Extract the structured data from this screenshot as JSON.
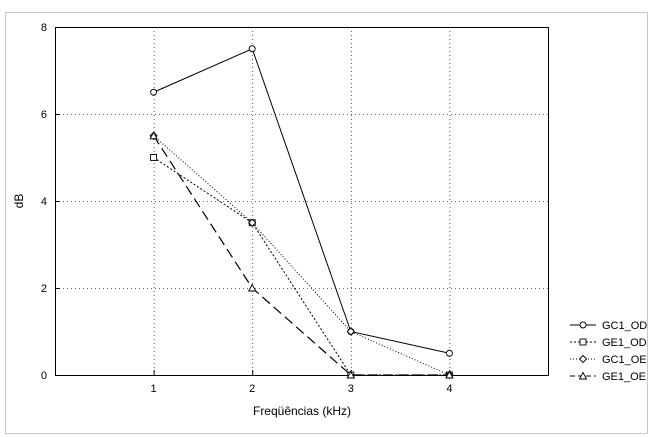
{
  "chart_data": {
    "type": "line",
    "title": "",
    "xlabel": "Freqüências (kHz)",
    "ylabel": "dB",
    "xlim": [
      0,
      5
    ],
    "ylim": [
      0,
      8
    ],
    "xticks": [
      1,
      2,
      3,
      4
    ],
    "yticks": [
      0,
      2,
      4,
      6,
      8
    ],
    "grid": true,
    "legend_position": "right",
    "x": [
      1,
      2,
      3,
      4
    ],
    "series": [
      {
        "name": "GC1_OD",
        "values": [
          6.5,
          7.5,
          1.0,
          0.5
        ],
        "line_style": "solid",
        "marker": "circle"
      },
      {
        "name": "GE1_OD",
        "values": [
          5.0,
          3.5,
          0.0,
          0.0
        ],
        "line_style": "dotted",
        "marker": "square"
      },
      {
        "name": "GC1_OE",
        "values": [
          5.5,
          3.5,
          1.0,
          0.0
        ],
        "line_style": "fine-dotted",
        "marker": "diamond"
      },
      {
        "name": "GE1_OE",
        "values": [
          5.5,
          2.0,
          0.0,
          0.0
        ],
        "line_style": "dashed",
        "marker": "triangle"
      }
    ]
  }
}
